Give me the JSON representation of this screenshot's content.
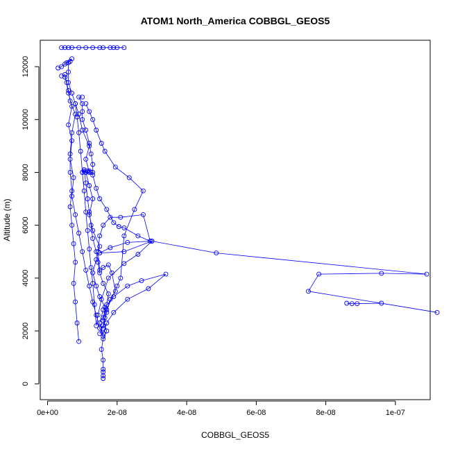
{
  "chart_data": {
    "type": "line",
    "title": "ATOM1 North_America COBBGL_GEOS5",
    "xlabel": "COBBGL_GEOS5",
    "ylabel": "Altitude (m)",
    "xlim": [
      -2.1e-09,
      1.1e-07
    ],
    "ylim": [
      -600,
      13000
    ],
    "x_ticks": [
      0,
      2e-08,
      4e-08,
      6e-08,
      8e-08,
      1e-07
    ],
    "x_tick_labels": [
      "0e+00",
      "2e-08",
      "4e-08",
      "6e-08",
      "8e-08",
      "1e-07"
    ],
    "y_ticks": [
      0,
      2000,
      4000,
      6000,
      8000,
      10000,
      12000
    ],
    "y_tick_labels": [
      "0",
      "2000",
      "4000",
      "6000",
      "8000",
      "10000",
      "12000"
    ],
    "grid": false,
    "series": [
      {
        "color": "#0000ff",
        "marker": "open-circle",
        "points": [
          [
            1.6e-08,
            200
          ],
          [
            1.6e-08,
            300
          ],
          [
            1.6e-08,
            450
          ],
          [
            1.6e-08,
            550
          ],
          [
            1.6e-08,
            900
          ],
          [
            1.55e-08,
            1300
          ],
          [
            1.6e-08,
            1700
          ],
          [
            1.7e-08,
            2000
          ],
          [
            1.6e-08,
            2400
          ],
          [
            1.65e-08,
            2900
          ],
          [
            1.5e-08,
            3300
          ],
          [
            1.4e-08,
            3700
          ],
          [
            1.3e-08,
            4200
          ],
          [
            1.4e-08,
            4700
          ],
          [
            1.5e-08,
            5200
          ],
          [
            1.3e-08,
            5800
          ],
          [
            1.2e-08,
            6400
          ],
          [
            1.3e-08,
            7000
          ],
          [
            1.2e-08,
            7500
          ],
          [
            1.1e-08,
            8000
          ],
          [
            1.2e-08,
            8000
          ],
          [
            1.1e-08,
            8500
          ],
          [
            1.2e-08,
            9000
          ],
          [
            1e-08,
            9600
          ],
          [
            9e-09,
            10200
          ],
          [
            8e-09,
            10600
          ],
          [
            7e-09,
            11000
          ],
          [
            6e-09,
            11400
          ],
          [
            6e-09,
            11800
          ],
          [
            6e-09,
            12150
          ],
          [
            5.5e-09,
            12150
          ],
          [
            6.5e-09,
            12200
          ],
          [
            7e-09,
            12300
          ],
          [
            5e-09,
            12100
          ],
          [
            4e-09,
            12000
          ],
          [
            3e-09,
            11950
          ]
        ]
      },
      {
        "color": "#0000ff",
        "marker": "open-circle",
        "points": [
          [
            4e-09,
            12720
          ],
          [
            5e-09,
            12720
          ],
          [
            6e-09,
            12720
          ],
          [
            7e-09,
            12720
          ],
          [
            9e-09,
            12720
          ],
          [
            1.1e-08,
            12720
          ],
          [
            1.3e-08,
            12720
          ],
          [
            1.6e-08,
            12720
          ],
          [
            1.8e-08,
            12720
          ],
          [
            2e-08,
            12720
          ],
          [
            2.2e-08,
            12720
          ],
          [
            1.9e-08,
            12720
          ],
          [
            1.5e-08,
            12720
          ]
        ]
      },
      {
        "color": "#0000ff",
        "marker": "open-circle",
        "points": [
          [
            1.6e-08,
            1800
          ],
          [
            1.5e-08,
            2300
          ],
          [
            1.6e-08,
            2800
          ],
          [
            1.9e-08,
            3300
          ],
          [
            2.3e-08,
            3700
          ],
          [
            2.7e-08,
            3900
          ],
          [
            3.4e-08,
            4150
          ],
          [
            2.9e-08,
            3600
          ],
          [
            2.3e-08,
            3200
          ],
          [
            1.9e-08,
            2700
          ],
          [
            1.7e-08,
            2300
          ],
          [
            1.6e-08,
            1900
          ],
          [
            1.5e-08,
            2100
          ],
          [
            1.4e-08,
            2600
          ],
          [
            1.3e-08,
            3100
          ],
          [
            1.2e-08,
            3700
          ],
          [
            1.1e-08,
            4300
          ],
          [
            1e-08,
            5000
          ],
          [
            9e-09,
            5700
          ],
          [
            8e-09,
            6400
          ],
          [
            7e-09,
            7100
          ],
          [
            7.5e-09,
            7800
          ],
          [
            6.5e-09,
            8500
          ],
          [
            7e-09,
            9200
          ],
          [
            6e-09,
            9800
          ],
          [
            7e-09,
            10500
          ],
          [
            6e-09,
            11000
          ],
          [
            5e-09,
            11700
          ],
          [
            4e-09,
            11650
          ]
        ]
      },
      {
        "color": "#0000ff",
        "marker": "open-circle",
        "points": [
          [
            9e-09,
            1600
          ],
          [
            8.5e-09,
            2300
          ],
          [
            8e-09,
            3100
          ],
          [
            7.5e-09,
            3800
          ],
          [
            8e-09,
            4600
          ],
          [
            7.5e-09,
            5300
          ],
          [
            7e-09,
            6000
          ],
          [
            6.5e-09,
            6700
          ],
          [
            7e-09,
            7300
          ],
          [
            6.5e-09,
            8000
          ],
          [
            6.5e-09,
            8700
          ],
          [
            7e-09,
            9500
          ],
          [
            8e-09,
            10200
          ],
          [
            6.5e-09,
            10700
          ],
          [
            6e-09,
            11100
          ],
          [
            5.5e-09,
            11400
          ],
          [
            5e-09,
            11600
          ]
        ]
      },
      {
        "color": "#0000ff",
        "marker": "open-circle",
        "points": [
          [
            1.5e-08,
            1900
          ],
          [
            1.6e-08,
            2200
          ],
          [
            1.7e-08,
            2700
          ],
          [
            1.8e-08,
            3200
          ],
          [
            1.95e-08,
            3500
          ],
          [
            1.85e-08,
            4200
          ],
          [
            1.75e-08,
            4500
          ],
          [
            1.6e-08,
            4400
          ],
          [
            1.5e-08,
            4300
          ],
          [
            1.45e-08,
            5000
          ],
          [
            1.5e-08,
            5600
          ],
          [
            1.6e-08,
            6000
          ],
          [
            1.8e-08,
            6300
          ],
          [
            2.1e-08,
            6300
          ],
          [
            2.75e-08,
            6400
          ],
          [
            2.95e-08,
            5400
          ],
          [
            2.6e-08,
            5600
          ],
          [
            2.2e-08,
            5900
          ],
          [
            2.05e-08,
            5950
          ],
          [
            1.9e-08,
            6100
          ],
          [
            1.7e-08,
            6600
          ],
          [
            1.5e-08,
            7000
          ],
          [
            1.4e-08,
            7400
          ],
          [
            1.3e-08,
            7900
          ],
          [
            1.3e-08,
            8300
          ],
          [
            1.25e-08,
            8700
          ],
          [
            1.2e-08,
            9100
          ],
          [
            1.1e-08,
            9600
          ],
          [
            1e-08,
            10000
          ],
          [
            1e-08,
            10300
          ],
          [
            1e-08,
            10600
          ],
          [
            9e-09,
            10850
          ],
          [
            1e-08,
            10850
          ]
        ]
      },
      {
        "color": "#0000ff",
        "marker": "open-circle",
        "points": [
          [
            1.6e-08,
            2100
          ],
          [
            1.65e-08,
            2500
          ],
          [
            1.7e-08,
            3000
          ],
          [
            1.75e-08,
            3400
          ],
          [
            1.6e-08,
            3800
          ],
          [
            1.5e-08,
            4200
          ],
          [
            1.45e-08,
            4600
          ],
          [
            1.4e-08,
            5000
          ],
          [
            1.3e-08,
            5500
          ],
          [
            1.25e-08,
            6000
          ],
          [
            1.2e-08,
            6500
          ],
          [
            1.15e-08,
            7000
          ],
          [
            1.1e-08,
            7600
          ],
          [
            1.05e-08,
            8100
          ],
          [
            1e-08,
            8000
          ],
          [
            1.05e-08,
            8050
          ],
          [
            1.1e-08,
            8000
          ],
          [
            1.15e-08,
            8050
          ],
          [
            1.2e-08,
            8050
          ],
          [
            1.25e-08,
            8000
          ],
          [
            1.3e-08,
            8000
          ]
        ]
      },
      {
        "color": "#0000ff",
        "marker": "open-circle",
        "points": [
          [
            1.5e-08,
            4950
          ],
          [
            1.8e-08,
            5150
          ],
          [
            2.3e-08,
            5350
          ],
          [
            3e-08,
            5400
          ],
          [
            2.6e-08,
            4900
          ],
          [
            2.2e-08,
            4550
          ],
          [
            1.75e-08,
            4000
          ],
          [
            1.55e-08,
            3200
          ],
          [
            1.45e-08,
            2600
          ],
          [
            1.4e-08,
            2200
          ],
          [
            1.35e-08,
            3000
          ],
          [
            1.3e-08,
            3800
          ],
          [
            1.25e-08,
            4400
          ],
          [
            1.2e-08,
            5100
          ],
          [
            1.15e-08,
            5800
          ],
          [
            1.1e-08,
            6500
          ],
          [
            1.05e-08,
            7300
          ],
          [
            1e-08,
            8000
          ],
          [
            9.5e-09,
            8800
          ],
          [
            9e-09,
            9500
          ],
          [
            8.5e-09,
            10100
          ],
          [
            8e-09,
            10600
          ]
        ]
      },
      {
        "color": "#0000ff",
        "marker": "open-circle",
        "points": [
          [
            1.5e-08,
            4950
          ],
          [
            2.2e-08,
            5000
          ],
          [
            3e-08,
            5400
          ],
          [
            4.85e-08,
            4950
          ],
          [
            1.09e-07,
            4150
          ],
          [
            9.6e-08,
            4180
          ],
          [
            7.8e-08,
            4150
          ],
          [
            7.5e-08,
            3500
          ],
          [
            1.12e-07,
            2700
          ],
          [
            9.6e-08,
            3050
          ],
          [
            8.9e-08,
            3030
          ],
          [
            8.75e-08,
            3030
          ],
          [
            8.6e-08,
            3050
          ]
        ]
      },
      {
        "color": "#0000ff",
        "marker": "open-circle",
        "points": [
          [
            1.6e-08,
            2500
          ],
          [
            1.7e-08,
            2800
          ],
          [
            2e-08,
            3700
          ],
          [
            2.1e-08,
            4000
          ],
          [
            2.2e-08,
            5600
          ],
          [
            2.5e-08,
            6600
          ],
          [
            2.75e-08,
            7300
          ],
          [
            2.35e-08,
            7800
          ],
          [
            1.95e-08,
            8200
          ],
          [
            1.65e-08,
            8800
          ],
          [
            1.55e-08,
            9100
          ],
          [
            1.4e-08,
            9600
          ],
          [
            1.3e-08,
            10000
          ],
          [
            1.2e-08,
            10300
          ],
          [
            1.1e-08,
            10600
          ]
        ]
      }
    ]
  }
}
